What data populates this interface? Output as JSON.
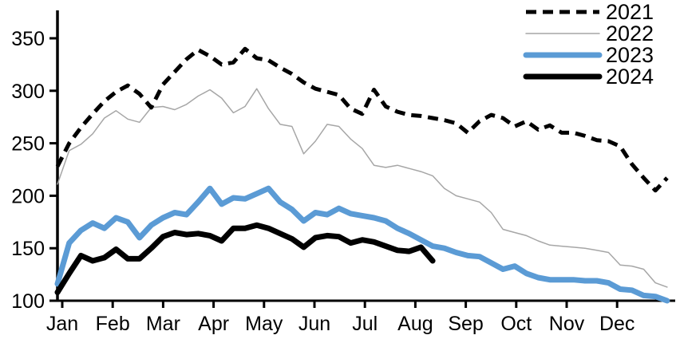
{
  "figure": {
    "background_color": "#ffffff",
    "axis_color": "#000000",
    "y_axis": {
      "tick_values": [
        100,
        150,
        200,
        250,
        300,
        350
      ],
      "tick_labels": [
        "100",
        "150",
        "200",
        "250",
        "300",
        "350"
      ],
      "min": 100,
      "top_visible_value": 376
    },
    "x_axis": {
      "tick_labels": [
        "Jan",
        "Feb",
        "Mar",
        "Apr",
        "May",
        "Jun",
        "Jul",
        "Aug",
        "Sep",
        "Oct",
        "Nov",
        "Dec"
      ]
    },
    "legend": [
      {
        "label": "2021",
        "style": "dashed",
        "color": "#000000",
        "width": 5
      },
      {
        "label": "2022",
        "style": "solid",
        "color": "#a6a6a6",
        "width": 1.5
      },
      {
        "label": "2023",
        "style": "solid",
        "color": "#5b9bd5",
        "width": 7
      },
      {
        "label": "2024",
        "style": "solid",
        "color": "#000000",
        "width": 7
      }
    ]
  },
  "chart_data": {
    "type": "line",
    "title": "",
    "xlabel": "",
    "ylabel": "",
    "x_unit": "week-of-year",
    "x_range_weeks": [
      0,
      52
    ],
    "ylim": [
      100,
      376
    ],
    "grid": false,
    "legend_position": "top-right",
    "categories": [
      "Jan",
      "Feb",
      "Mar",
      "Apr",
      "May",
      "Jun",
      "Jul",
      "Aug",
      "Sep",
      "Oct",
      "Nov",
      "Dec"
    ],
    "series": [
      {
        "name": "2021",
        "color": "#000000",
        "line_style": "dashed",
        "line_width": 5,
        "values": [
          228,
          250,
          265,
          278,
          290,
          299,
          305,
          297,
          284,
          306,
          318,
          330,
          339,
          333,
          325,
          327,
          340,
          331,
          329,
          322,
          316,
          308,
          302,
          299,
          296,
          283,
          278,
          301,
          285,
          280,
          277,
          276,
          274,
          272,
          269,
          260,
          271,
          277,
          274,
          266,
          271,
          263,
          267,
          260,
          260,
          257,
          253,
          252,
          247,
          230,
          217,
          205,
          217
        ]
      },
      {
        "name": "2022",
        "color": "#a6a6a6",
        "line_style": "solid",
        "line_width": 1.5,
        "values": [
          211,
          243,
          249,
          259,
          274,
          281,
          273,
          270,
          284,
          285,
          282,
          287,
          295,
          301,
          293,
          279,
          285,
          302,
          283,
          268,
          266,
          240,
          252,
          268,
          266,
          254,
          245,
          229,
          227,
          229,
          226,
          223,
          219,
          207,
          200,
          197,
          194,
          184,
          168,
          165,
          162,
          157,
          153,
          152,
          151,
          150,
          148,
          146,
          134,
          133,
          130,
          117,
          113
        ]
      },
      {
        "name": "2023",
        "color": "#5b9bd5",
        "line_style": "solid",
        "line_width": 7,
        "values": [
          116,
          155,
          167,
          174,
          169,
          179,
          175,
          160,
          172,
          179,
          184,
          182,
          194,
          207,
          192,
          198,
          197,
          202,
          207,
          194,
          187,
          176,
          184,
          182,
          188,
          183,
          181,
          179,
          176,
          169,
          164,
          158,
          152,
          150,
          146,
          143,
          142,
          136,
          130,
          133,
          126,
          122,
          120,
          120,
          120,
          119,
          119,
          117,
          111,
          110,
          105,
          104,
          100
        ]
      },
      {
        "name": "2024",
        "color": "#000000",
        "line_style": "solid",
        "line_width": 7,
        "values": [
          108,
          126,
          143,
          138,
          141,
          149,
          140,
          140,
          150,
          161,
          165,
          163,
          164,
          162,
          157,
          169,
          169,
          172,
          169,
          164,
          159,
          151,
          160,
          162,
          161,
          155,
          158,
          156,
          152,
          148,
          147,
          151,
          138
        ]
      }
    ]
  }
}
